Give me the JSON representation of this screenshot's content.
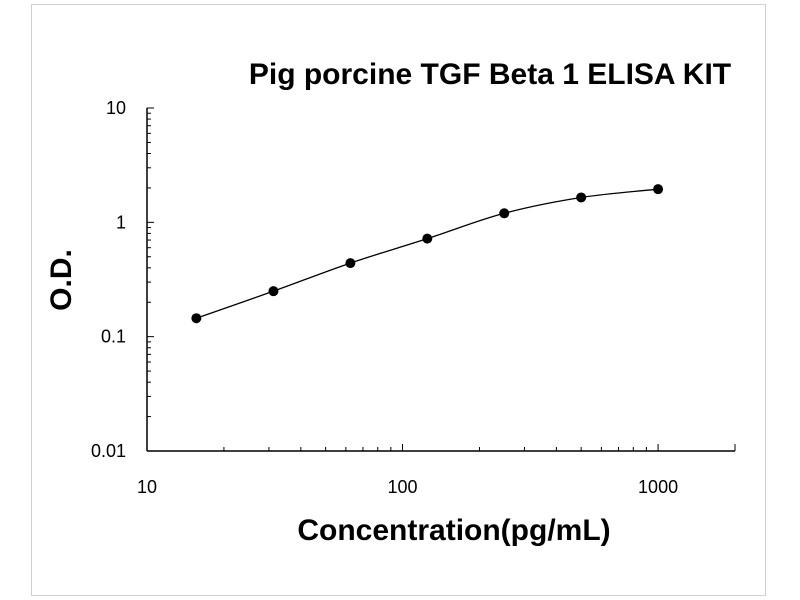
{
  "chart_data": {
    "type": "line",
    "title": "Pig porcine TGF Beta 1 ELISA KIT",
    "xlabel": "Concentration(pg/mL)",
    "ylabel": "O.D.",
    "x_scale": "log",
    "y_scale": "log",
    "xlim": [
      10,
      2000
    ],
    "ylim": [
      0.01,
      10
    ],
    "x_ticks": [
      {
        "value": 10,
        "label": "10"
      },
      {
        "value": 100,
        "label": "100"
      },
      {
        "value": 1000,
        "label": "1000"
      }
    ],
    "y_ticks": [
      {
        "value": 0.01,
        "label": "0.01"
      },
      {
        "value": 0.1,
        "label": "0.1"
      },
      {
        "value": 1,
        "label": "1"
      },
      {
        "value": 10,
        "label": "10"
      }
    ],
    "grid": false,
    "series": [
      {
        "x": [
          15.6,
          31.25,
          62.5,
          125,
          250,
          500,
          1000
        ],
        "y": [
          0.145,
          0.25,
          0.44,
          0.72,
          1.2,
          1.65,
          1.95
        ],
        "color": "#000000",
        "marker": "circle"
      }
    ]
  }
}
